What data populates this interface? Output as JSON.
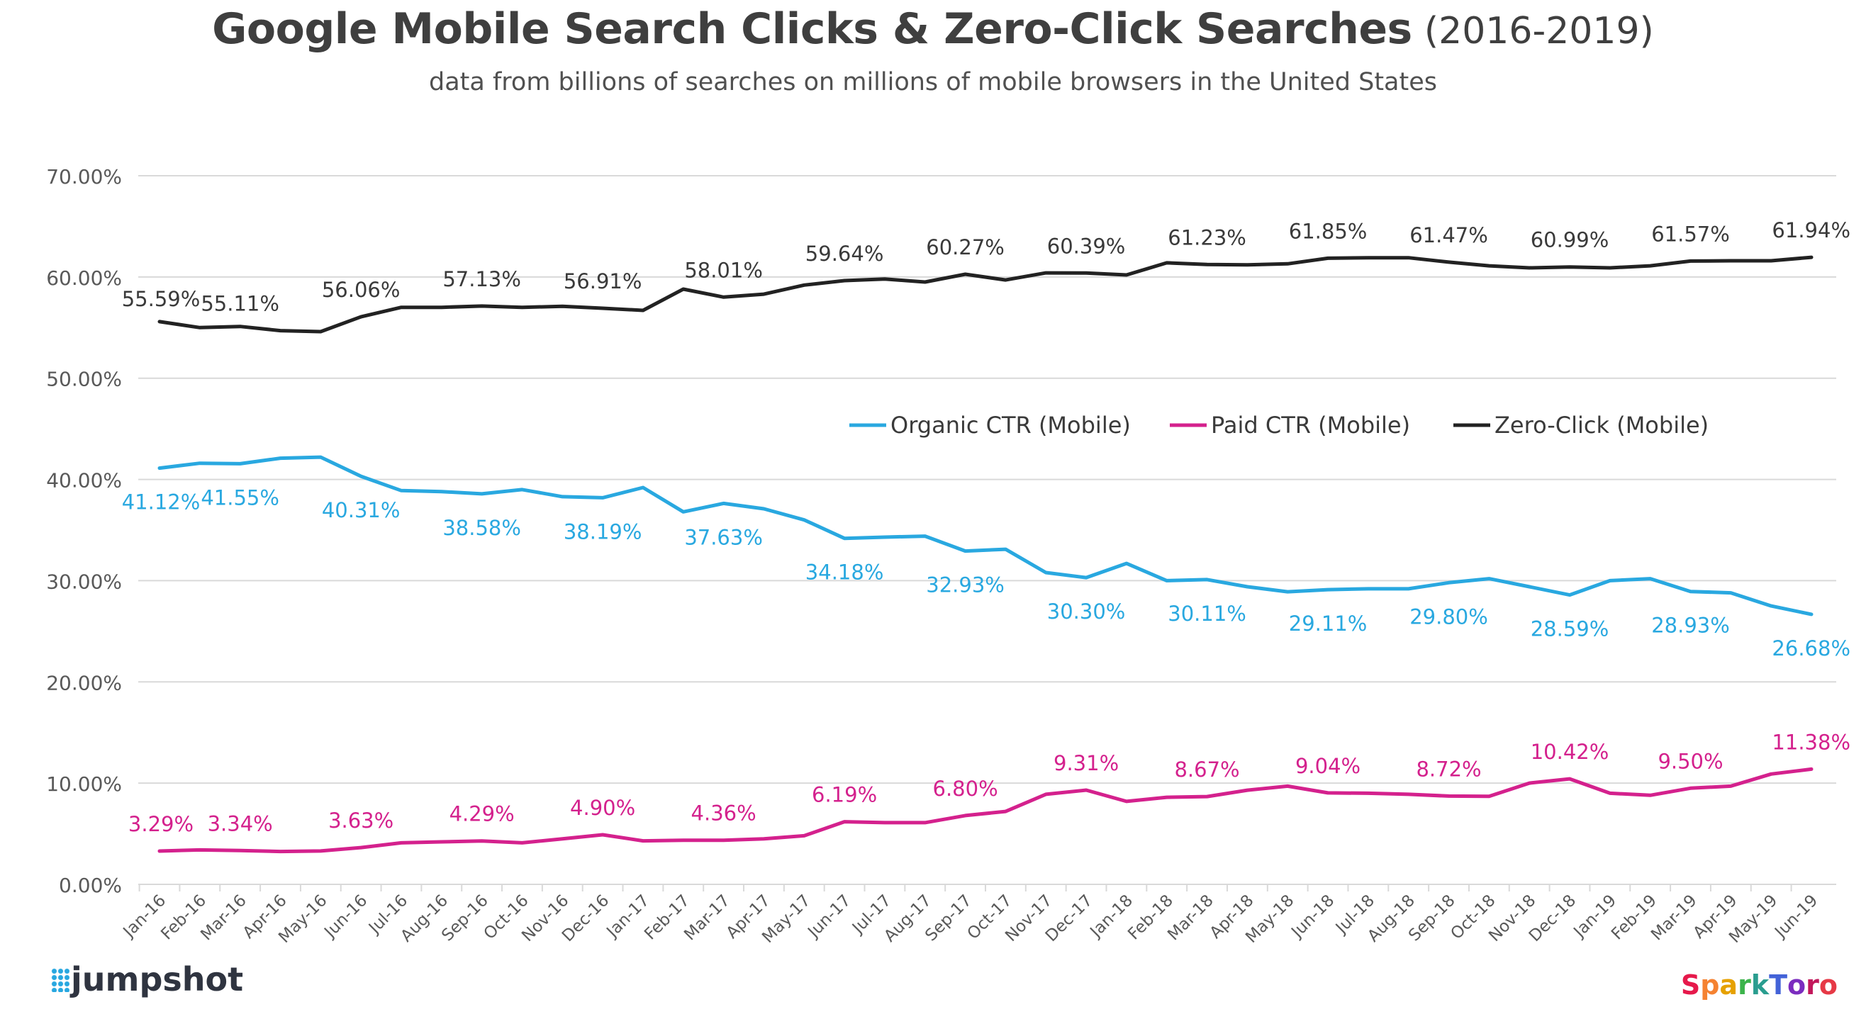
{
  "title": "Google Mobile Search Clicks & Zero-Click Searches",
  "title_years": "(2016-2019)",
  "subtitle": "data from billions of searches on millions of mobile browsers in the United States",
  "logos": {
    "left": "jumpshot",
    "right": "SparkToro"
  },
  "colors": {
    "organic": "#29a8e0",
    "paid": "#d4218d",
    "zero": "#222222",
    "grid": "#d9d9d9",
    "axis_text": "#595959"
  },
  "chart_data": {
    "type": "line",
    "ylim": [
      0,
      70
    ],
    "y_ticks": [
      "0.00%",
      "10.00%",
      "20.00%",
      "30.00%",
      "40.00%",
      "50.00%",
      "60.00%",
      "70.00%"
    ],
    "grid": true,
    "legend_placement": "center-right",
    "categories": [
      "Jan-16",
      "Feb-16",
      "Mar-16",
      "Apr-16",
      "May-16",
      "Jun-16",
      "Jul-16",
      "Aug-16",
      "Sep-16",
      "Oct-16",
      "Nov-16",
      "Dec-16",
      "Jan-17",
      "Feb-17",
      "Mar-17",
      "Apr-17",
      "May-17",
      "Jun-17",
      "Jul-17",
      "Aug-17",
      "Sep-17",
      "Oct-17",
      "Nov-17",
      "Dec-17",
      "Jan-18",
      "Feb-18",
      "Mar-18",
      "Apr-18",
      "May-18",
      "Jun-18",
      "Jul-18",
      "Aug-18",
      "Sep-18",
      "Oct-18",
      "Nov-18",
      "Dec-18",
      "Jan-19",
      "Feb-19",
      "Mar-19",
      "Apr-19",
      "May-19",
      "Jun-19"
    ],
    "series": [
      {
        "name": "Organic CTR (Mobile)",
        "key": "organic",
        "values": [
          41.12,
          41.6,
          41.55,
          42.1,
          42.2,
          40.31,
          38.9,
          38.8,
          38.58,
          39.0,
          38.3,
          38.19,
          39.2,
          36.8,
          37.63,
          37.1,
          36.0,
          34.18,
          34.3,
          34.4,
          32.93,
          33.1,
          30.8,
          30.3,
          31.7,
          30.0,
          30.11,
          29.4,
          28.9,
          29.11,
          29.2,
          29.2,
          29.8,
          30.2,
          29.4,
          28.59,
          30.0,
          30.2,
          28.93,
          28.8,
          27.5,
          26.68
        ],
        "labels": [
          {
            "i": 0,
            "text": "41.12%"
          },
          {
            "i": 2,
            "text": "41.55%"
          },
          {
            "i": 5,
            "text": "40.31%"
          },
          {
            "i": 8,
            "text": "38.58%"
          },
          {
            "i": 11,
            "text": "38.19%"
          },
          {
            "i": 14,
            "text": "37.63%"
          },
          {
            "i": 17,
            "text": "34.18%"
          },
          {
            "i": 20,
            "text": "32.93%"
          },
          {
            "i": 23,
            "text": "30.30%"
          },
          {
            "i": 26,
            "text": "30.11%"
          },
          {
            "i": 29,
            "text": "29.11%"
          },
          {
            "i": 32,
            "text": "29.80%"
          },
          {
            "i": 35,
            "text": "28.59%"
          },
          {
            "i": 38,
            "text": "28.93%"
          },
          {
            "i": 41,
            "text": "26.68%"
          }
        ]
      },
      {
        "name": "Paid CTR (Mobile)",
        "key": "paid",
        "values": [
          3.29,
          3.4,
          3.34,
          3.25,
          3.3,
          3.63,
          4.1,
          4.2,
          4.29,
          4.1,
          4.5,
          4.9,
          4.3,
          4.36,
          4.36,
          4.5,
          4.8,
          6.19,
          6.1,
          6.1,
          6.8,
          7.2,
          8.9,
          9.31,
          8.2,
          8.6,
          8.67,
          9.3,
          9.7,
          9.04,
          9.0,
          8.9,
          8.72,
          8.7,
          10.0,
          10.42,
          9.0,
          8.8,
          9.5,
          9.7,
          10.9,
          11.38
        ],
        "labels": [
          {
            "i": 0,
            "text": "3.29%"
          },
          {
            "i": 2,
            "text": "3.34%"
          },
          {
            "i": 5,
            "text": "3.63%"
          },
          {
            "i": 8,
            "text": "4.29%"
          },
          {
            "i": 11,
            "text": "4.90%"
          },
          {
            "i": 14,
            "text": "4.36%"
          },
          {
            "i": 17,
            "text": "6.19%"
          },
          {
            "i": 20,
            "text": "6.80%"
          },
          {
            "i": 23,
            "text": "9.31%"
          },
          {
            "i": 26,
            "text": "8.67%"
          },
          {
            "i": 29,
            "text": "9.04%"
          },
          {
            "i": 32,
            "text": "8.72%"
          },
          {
            "i": 35,
            "text": "10.42%"
          },
          {
            "i": 38,
            "text": "9.50%"
          },
          {
            "i": 41,
            "text": "11.38%"
          }
        ]
      },
      {
        "name": "Zero-Click (Mobile)",
        "key": "zero",
        "values": [
          55.59,
          55.0,
          55.11,
          54.7,
          54.6,
          56.06,
          57.0,
          57.0,
          57.13,
          57.0,
          57.1,
          56.91,
          56.7,
          58.8,
          58.01,
          58.3,
          59.2,
          59.64,
          59.8,
          59.5,
          60.27,
          59.7,
          60.4,
          60.39,
          60.2,
          61.4,
          61.23,
          61.2,
          61.3,
          61.85,
          61.9,
          61.9,
          61.47,
          61.1,
          60.9,
          60.99,
          60.9,
          61.1,
          61.57,
          61.6,
          61.6,
          61.94
        ],
        "labels": [
          {
            "i": 0,
            "text": "55.59%"
          },
          {
            "i": 2,
            "text": "55.11%"
          },
          {
            "i": 5,
            "text": "56.06%"
          },
          {
            "i": 8,
            "text": "57.13%"
          },
          {
            "i": 11,
            "text": "56.91%"
          },
          {
            "i": 14,
            "text": "58.01%"
          },
          {
            "i": 17,
            "text": "59.64%"
          },
          {
            "i": 20,
            "text": "60.27%"
          },
          {
            "i": 23,
            "text": "60.39%"
          },
          {
            "i": 26,
            "text": "61.23%"
          },
          {
            "i": 29,
            "text": "61.85%"
          },
          {
            "i": 32,
            "text": "61.47%"
          },
          {
            "i": 35,
            "text": "60.99%"
          },
          {
            "i": 38,
            "text": "61.57%"
          },
          {
            "i": 41,
            "text": "61.94%"
          }
        ]
      }
    ]
  }
}
